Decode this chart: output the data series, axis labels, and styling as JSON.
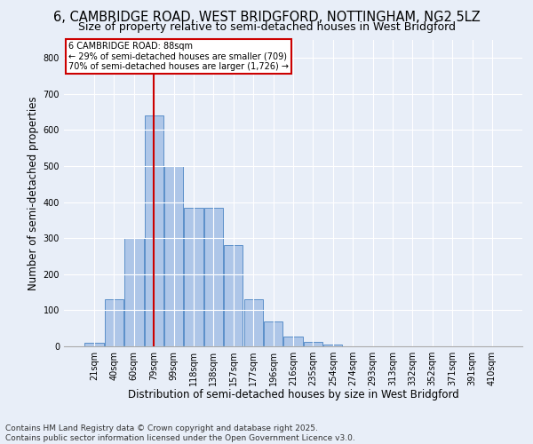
{
  "title1": "6, CAMBRIDGE ROAD, WEST BRIDGFORD, NOTTINGHAM, NG2 5LZ",
  "title2": "Size of property relative to semi-detached houses in West Bridgford",
  "xlabel": "Distribution of semi-detached houses by size in West Bridgford",
  "ylabel": "Number of semi-detached properties",
  "footer": "Contains HM Land Registry data © Crown copyright and database right 2025.\nContains public sector information licensed under the Open Government Licence v3.0.",
  "bar_labels": [
    "21sqm",
    "40sqm",
    "60sqm",
    "79sqm",
    "99sqm",
    "118sqm",
    "138sqm",
    "157sqm",
    "177sqm",
    "196sqm",
    "216sqm",
    "235sqm",
    "254sqm",
    "274sqm",
    "293sqm",
    "313sqm",
    "332sqm",
    "352sqm",
    "371sqm",
    "391sqm",
    "410sqm"
  ],
  "bar_values": [
    10,
    130,
    300,
    640,
    500,
    385,
    385,
    280,
    130,
    70,
    28,
    12,
    5,
    0,
    0,
    0,
    0,
    0,
    0,
    0,
    0
  ],
  "bar_color": "#aec6e8",
  "bar_edge_color": "#5b8fc9",
  "vline_x": 3,
  "vline_color": "#cc0000",
  "annotation_title": "6 CAMBRIDGE ROAD: 88sqm",
  "annotation_line1": "← 29% of semi-detached houses are smaller (709)",
  "annotation_line2": "70% of semi-detached houses are larger (1,726) →",
  "annotation_box_color": "#cc0000",
  "ylim": [
    0,
    850
  ],
  "yticks": [
    0,
    100,
    200,
    300,
    400,
    500,
    600,
    700,
    800
  ],
  "background_color": "#e8eef8",
  "plot_bg_color": "#e8eef8",
  "grid_color": "#ffffff",
  "title_fontsize": 10.5,
  "subtitle_fontsize": 9,
  "axis_label_fontsize": 8.5,
  "tick_fontsize": 7,
  "footer_fontsize": 6.5
}
